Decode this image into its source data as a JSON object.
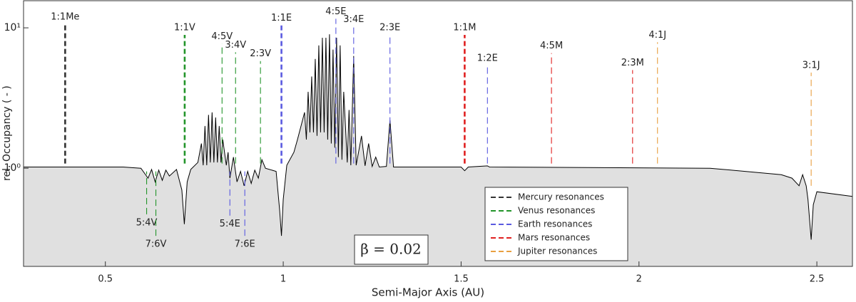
{
  "chart_data": {
    "type": "line",
    "xlabel": "Semi-Major Axis (AU)",
    "ylabel": "rel. Occupancy ( - )",
    "annotation": "β = 0.02",
    "xlim": [
      0.27,
      2.6
    ],
    "ylim": [
      0.2,
      15.6
    ],
    "log_y": true,
    "xticks": [
      0.5,
      1,
      1.5,
      2,
      2.5
    ],
    "yticks": [
      {
        "value": 1,
        "label": "10⁰"
      },
      {
        "value": 10,
        "label": "10¹"
      }
    ],
    "color": "#000000",
    "fill": "#e0e0e0",
    "legend": "lower right",
    "x": [
      0.27,
      0.55,
      0.6,
      0.62,
      0.63,
      0.64,
      0.65,
      0.66,
      0.67,
      0.68,
      0.7,
      0.715,
      0.722,
      0.73,
      0.74,
      0.76,
      0.77,
      0.775,
      0.78,
      0.785,
      0.79,
      0.795,
      0.8,
      0.805,
      0.81,
      0.815,
      0.82,
      0.825,
      0.83,
      0.84,
      0.845,
      0.85,
      0.86,
      0.87,
      0.88,
      0.89,
      0.9,
      0.91,
      0.92,
      0.93,
      0.94,
      0.95,
      0.98,
      0.99,
      0.995,
      1.0,
      1.01,
      1.03,
      1.04,
      1.05,
      1.06,
      1.065,
      1.07,
      1.075,
      1.08,
      1.085,
      1.09,
      1.095,
      1.1,
      1.105,
      1.11,
      1.115,
      1.12,
      1.125,
      1.13,
      1.135,
      1.14,
      1.145,
      1.15,
      1.155,
      1.16,
      1.165,
      1.17,
      1.18,
      1.185,
      1.19,
      1.198,
      1.205,
      1.22,
      1.23,
      1.24,
      1.25,
      1.26,
      1.27,
      1.29,
      1.3,
      1.31,
      1.5,
      1.51,
      1.52,
      1.574,
      1.58,
      2.2,
      2.4,
      2.43,
      2.45,
      2.46,
      2.47,
      2.475,
      2.484,
      2.49,
      2.5,
      2.6
    ],
    "values": [
      1.02,
      1.02,
      1.0,
      0.85,
      0.98,
      0.8,
      0.97,
      0.82,
      0.97,
      0.88,
      0.98,
      0.7,
      0.4,
      0.8,
      0.98,
      1.1,
      1.5,
      1.05,
      2.0,
      1.05,
      2.4,
      1.1,
      2.5,
      1.1,
      2.3,
      1.1,
      2.0,
      1.1,
      1.6,
      1.05,
      1.3,
      0.85,
      1.2,
      0.8,
      0.95,
      0.75,
      0.95,
      0.78,
      0.97,
      0.85,
      1.15,
      1.0,
      0.95,
      0.5,
      0.33,
      0.6,
      1.05,
      1.3,
      1.6,
      2.0,
      2.5,
      1.6,
      3.5,
      1.8,
      4.5,
      1.8,
      6.0,
      1.7,
      7.5,
      1.8,
      8.5,
      1.8,
      8.5,
      1.6,
      9.0,
      1.5,
      7.0,
      1.4,
      8.5,
      1.2,
      7.5,
      1.15,
      3.5,
      1.1,
      2.6,
      1.05,
      6.3,
      1.05,
      1.7,
      1.04,
      1.5,
      1.03,
      1.2,
      1.02,
      1.03,
      2.2,
      1.02,
      1.02,
      0.96,
      1.02,
      1.04,
      1.02,
      1.0,
      0.9,
      0.85,
      0.75,
      0.9,
      0.75,
      0.6,
      0.31,
      0.55,
      0.68,
      0.63
    ],
    "resonance_groups": [
      {
        "name": "Mercury resonances",
        "color": "#333333",
        "resonances": [
          {
            "label": "1:1Me",
            "x": 0.387,
            "range": [
              1.08,
              10.6
            ],
            "label_at": "top",
            "bold": true
          }
        ]
      },
      {
        "name": "Venus resonances",
        "color": "#22942a",
        "resonances": [
          {
            "label": "1:1V",
            "x": 0.723,
            "range": [
              1.08,
              8.9
            ],
            "label_at": "top",
            "bold": true
          },
          {
            "label": "4:5V",
            "x": 0.828,
            "range": [
              1.08,
              7.7
            ],
            "label_at": "top"
          },
          {
            "label": "3:4V",
            "x": 0.866,
            "range": [
              1.08,
              6.7
            ],
            "label_at": "top"
          },
          {
            "label": "2:3V",
            "x": 0.936,
            "range": [
              1.08,
              5.8
            ],
            "label_at": "top"
          },
          {
            "label": "5:4V",
            "x": 0.616,
            "range": [
              0.47,
              0.95
            ],
            "label_at": "bottom"
          },
          {
            "label": "7:6V",
            "x": 0.642,
            "range": [
              0.33,
              0.95
            ],
            "label_at": "bottom"
          }
        ]
      },
      {
        "name": "Earth resonances",
        "color": "#5a5ae0",
        "resonances": [
          {
            "label": "1:1E",
            "x": 0.995,
            "range": [
              1.08,
              10.4
            ],
            "label_at": "top",
            "bold": true
          },
          {
            "label": "4:5E",
            "x": 1.148,
            "range": [
              1.08,
              11.6
            ],
            "label_at": "top"
          },
          {
            "label": "3:4E",
            "x": 1.198,
            "range": [
              1.08,
              10.2
            ],
            "label_at": "top"
          },
          {
            "label": "2:3E",
            "x": 1.3,
            "range": [
              1.08,
              8.9
            ],
            "label_at": "top"
          },
          {
            "label": "1:2E",
            "x": 1.574,
            "range": [
              1.08,
              5.4
            ],
            "label_at": "top"
          },
          {
            "label": "5:4E",
            "x": 0.85,
            "range": [
              0.46,
              0.95
            ],
            "label_at": "bottom"
          },
          {
            "label": "7:6E",
            "x": 0.892,
            "range": [
              0.33,
              0.95
            ],
            "label_at": "bottom"
          }
        ]
      },
      {
        "name": "Mars resonances",
        "color": "#e02020",
        "resonances": [
          {
            "label": "1:1M",
            "x": 1.51,
            "range": [
              1.08,
              8.9
            ],
            "label_at": "top",
            "bold": true
          },
          {
            "label": "4:5M",
            "x": 1.754,
            "range": [
              1.08,
              6.6
            ],
            "label_at": "top"
          },
          {
            "label": "2:3M",
            "x": 1.982,
            "range": [
              1.08,
              5.0
            ],
            "label_at": "top"
          }
        ]
      },
      {
        "name": "Jupiter resonances",
        "color": "#e8a040",
        "resonances": [
          {
            "label": "4:1J",
            "x": 2.052,
            "range": [
              1.08,
              7.9
            ],
            "label_at": "top"
          },
          {
            "label": "3:1J",
            "x": 2.484,
            "range": [
              0.75,
              4.8
            ],
            "label_at": "top"
          }
        ]
      }
    ]
  }
}
